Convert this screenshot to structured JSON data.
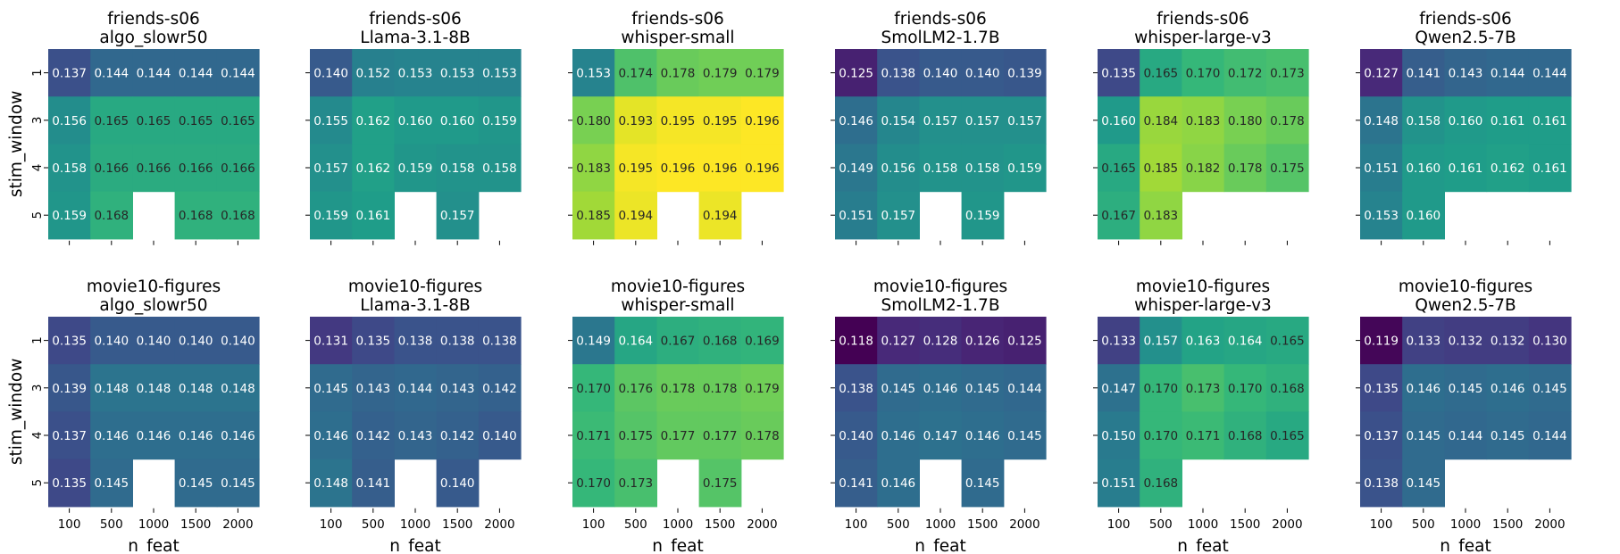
{
  "figure": {
    "xlabel": "n_feat",
    "ylabel": "stim_window"
  },
  "chart_data": [
    {
      "type": "heatmap",
      "dataset": "friends-s06",
      "model": "algo_slowr50",
      "x": [
        100,
        500,
        1000,
        1500,
        2000
      ],
      "y": [
        1,
        3,
        4,
        5
      ],
      "values": [
        [
          0.137,
          0.144,
          0.144,
          0.144,
          0.144
        ],
        [
          0.156,
          0.165,
          0.165,
          0.165,
          0.165
        ],
        [
          0.158,
          0.166,
          0.166,
          0.166,
          0.166
        ],
        [
          0.159,
          0.168,
          null,
          0.168,
          0.168
        ]
      ],
      "xlabel": "n_feat",
      "ylabel": "stim_window"
    },
    {
      "type": "heatmap",
      "dataset": "friends-s06",
      "model": "Llama-3.1-8B",
      "x": [
        100,
        500,
        1000,
        1500,
        2000
      ],
      "y": [
        1,
        3,
        4,
        5
      ],
      "values": [
        [
          0.14,
          0.152,
          0.153,
          0.153,
          0.153
        ],
        [
          0.155,
          0.162,
          0.16,
          0.16,
          0.159
        ],
        [
          0.157,
          0.162,
          0.159,
          0.158,
          0.158
        ],
        [
          0.159,
          0.161,
          null,
          0.157,
          null
        ]
      ],
      "xlabel": "n_feat",
      "ylabel": "stim_window"
    },
    {
      "type": "heatmap",
      "dataset": "friends-s06",
      "model": "whisper-small",
      "x": [
        100,
        500,
        1000,
        1500,
        2000
      ],
      "y": [
        1,
        3,
        4,
        5
      ],
      "values": [
        [
          0.153,
          0.174,
          0.178,
          0.179,
          0.179
        ],
        [
          0.18,
          0.193,
          0.195,
          0.195,
          0.196
        ],
        [
          0.183,
          0.195,
          0.196,
          0.196,
          0.196
        ],
        [
          0.185,
          0.194,
          null,
          0.194,
          null
        ]
      ],
      "xlabel": "n_feat",
      "ylabel": "stim_window"
    },
    {
      "type": "heatmap",
      "dataset": "friends-s06",
      "model": "SmolLM2-1.7B",
      "x": [
        100,
        500,
        1000,
        1500,
        2000
      ],
      "y": [
        1,
        3,
        4,
        5
      ],
      "values": [
        [
          0.125,
          0.138,
          0.14,
          0.14,
          0.139
        ],
        [
          0.146,
          0.154,
          0.157,
          0.157,
          0.157
        ],
        [
          0.149,
          0.156,
          0.158,
          0.158,
          0.159
        ],
        [
          0.151,
          0.157,
          null,
          0.159,
          null
        ]
      ],
      "xlabel": "n_feat",
      "ylabel": "stim_window"
    },
    {
      "type": "heatmap",
      "dataset": "friends-s06",
      "model": "whisper-large-v3",
      "x": [
        100,
        500,
        1000,
        1500,
        2000
      ],
      "y": [
        1,
        3,
        4,
        5
      ],
      "values": [
        [
          0.135,
          0.165,
          0.17,
          0.172,
          0.173
        ],
        [
          0.16,
          0.184,
          0.183,
          0.18,
          0.178
        ],
        [
          0.165,
          0.185,
          0.182,
          0.178,
          0.175
        ],
        [
          0.167,
          0.183,
          null,
          null,
          null
        ]
      ],
      "xlabel": "n_feat",
      "ylabel": "stim_window"
    },
    {
      "type": "heatmap",
      "dataset": "friends-s06",
      "model": "Qwen2.5-7B",
      "x": [
        100,
        500,
        1000,
        1500,
        2000
      ],
      "y": [
        1,
        3,
        4,
        5
      ],
      "values": [
        [
          0.127,
          0.141,
          0.143,
          0.144,
          0.144
        ],
        [
          0.148,
          0.158,
          0.16,
          0.161,
          0.161
        ],
        [
          0.151,
          0.16,
          0.161,
          0.162,
          0.161
        ],
        [
          0.153,
          0.16,
          null,
          null,
          null
        ]
      ],
      "xlabel": "n_feat",
      "ylabel": "stim_window"
    },
    {
      "type": "heatmap",
      "dataset": "movie10-figures",
      "model": "algo_slowr50",
      "x": [
        100,
        500,
        1000,
        1500,
        2000
      ],
      "y": [
        1,
        3,
        4,
        5
      ],
      "values": [
        [
          0.135,
          0.14,
          0.14,
          0.14,
          0.14
        ],
        [
          0.139,
          0.148,
          0.148,
          0.148,
          0.148
        ],
        [
          0.137,
          0.146,
          0.146,
          0.146,
          0.146
        ],
        [
          0.135,
          0.145,
          null,
          0.145,
          0.145
        ]
      ],
      "xlabel": "n_feat",
      "ylabel": "stim_window"
    },
    {
      "type": "heatmap",
      "dataset": "movie10-figures",
      "model": "Llama-3.1-8B",
      "x": [
        100,
        500,
        1000,
        1500,
        2000
      ],
      "y": [
        1,
        3,
        4,
        5
      ],
      "values": [
        [
          0.131,
          0.135,
          0.138,
          0.138,
          0.138
        ],
        [
          0.145,
          0.143,
          0.144,
          0.143,
          0.142
        ],
        [
          0.146,
          0.142,
          0.143,
          0.142,
          0.14
        ],
        [
          0.148,
          0.141,
          null,
          0.14,
          null
        ]
      ],
      "xlabel": "n_feat",
      "ylabel": "stim_window"
    },
    {
      "type": "heatmap",
      "dataset": "movie10-figures",
      "model": "whisper-small",
      "x": [
        100,
        500,
        1000,
        1500,
        2000
      ],
      "y": [
        1,
        3,
        4,
        5
      ],
      "values": [
        [
          0.149,
          0.164,
          0.167,
          0.168,
          0.169
        ],
        [
          0.17,
          0.176,
          0.178,
          0.178,
          0.179
        ],
        [
          0.171,
          0.175,
          0.177,
          0.177,
          0.178
        ],
        [
          0.17,
          0.173,
          null,
          0.175,
          null
        ]
      ],
      "xlabel": "n_feat",
      "ylabel": "stim_window"
    },
    {
      "type": "heatmap",
      "dataset": "movie10-figures",
      "model": "SmolLM2-1.7B",
      "x": [
        100,
        500,
        1000,
        1500,
        2000
      ],
      "y": [
        1,
        3,
        4,
        5
      ],
      "values": [
        [
          0.118,
          0.127,
          0.128,
          0.126,
          0.125
        ],
        [
          0.138,
          0.145,
          0.146,
          0.145,
          0.144
        ],
        [
          0.14,
          0.146,
          0.147,
          0.146,
          0.145
        ],
        [
          0.141,
          0.146,
          null,
          0.145,
          null
        ]
      ],
      "xlabel": "n_feat",
      "ylabel": "stim_window"
    },
    {
      "type": "heatmap",
      "dataset": "movie10-figures",
      "model": "whisper-large-v3",
      "x": [
        100,
        500,
        1000,
        1500,
        2000
      ],
      "y": [
        1,
        3,
        4,
        5
      ],
      "values": [
        [
          0.133,
          0.157,
          0.163,
          0.164,
          0.165
        ],
        [
          0.147,
          0.17,
          0.173,
          0.17,
          0.168
        ],
        [
          0.15,
          0.17,
          0.171,
          0.168,
          0.165
        ],
        [
          0.151,
          0.168,
          null,
          null,
          null
        ]
      ],
      "xlabel": "n_feat",
      "ylabel": "stim_window"
    },
    {
      "type": "heatmap",
      "dataset": "movie10-figures",
      "model": "Qwen2.5-7B",
      "x": [
        100,
        500,
        1000,
        1500,
        2000
      ],
      "y": [
        1,
        3,
        4,
        5
      ],
      "values": [
        [
          0.119,
          0.133,
          0.132,
          0.132,
          0.13
        ],
        [
          0.135,
          0.146,
          0.145,
          0.146,
          0.145
        ],
        [
          0.137,
          0.145,
          0.144,
          0.145,
          0.144
        ],
        [
          0.138,
          0.145,
          null,
          null,
          null
        ]
      ],
      "xlabel": "n_feat",
      "ylabel": "stim_window"
    }
  ]
}
